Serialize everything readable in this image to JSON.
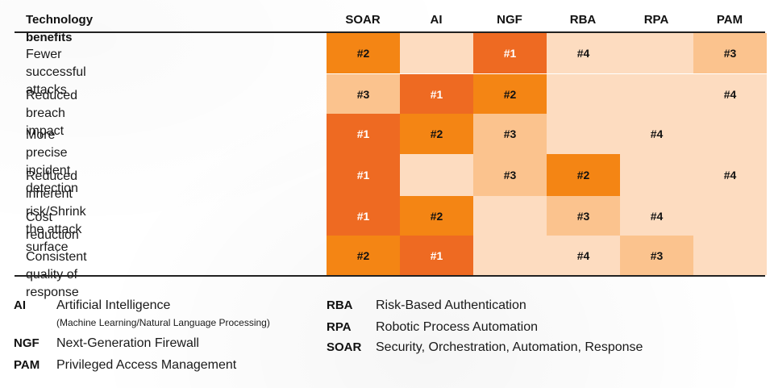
{
  "chart_data": {
    "type": "heatmap",
    "corner_header": "Technology benefits",
    "columns": [
      "SOAR",
      "AI",
      "NGF",
      "RBA",
      "RPA",
      "PAM"
    ],
    "rows": [
      {
        "label": "Fewer successful attacks",
        "ranks": [
          "#2",
          "",
          "#1",
          "#4",
          "",
          "#3"
        ]
      },
      {
        "label": "Reduced breach impact",
        "ranks": [
          "#3",
          "#1",
          "#2",
          "",
          "",
          "#4"
        ]
      },
      {
        "label": "More precise incident detection",
        "ranks": [
          "#1",
          "#2",
          "#3",
          "",
          "#4",
          ""
        ]
      },
      {
        "label": "Reduced inherent risk/Shrink the attack surface",
        "ranks": [
          "#1",
          "",
          "#3",
          "#2",
          "",
          "#4"
        ]
      },
      {
        "label": "Cost reduction",
        "ranks": [
          "#1",
          "#2",
          "",
          "#3",
          "#4",
          ""
        ]
      },
      {
        "label": "Consistent quality of response",
        "ranks": [
          "#2",
          "#1",
          "",
          "#4",
          "#3",
          ""
        ]
      }
    ],
    "rank_colors": {
      "#1": "#EE6A22",
      "#2": "#F48514",
      "#3": "#FBC38E",
      "#4": "#FDDCC0",
      "": "#FDDCC0"
    }
  },
  "legend": {
    "left": [
      {
        "abbr": "AI",
        "text": "Artificial Intelligence",
        "sub": "(Machine Learning/Natural Language Processing)"
      },
      {
        "abbr": "NGF",
        "text": "Next-Generation Firewall"
      },
      {
        "abbr": "PAM",
        "text": "Privileged Access Management"
      }
    ],
    "right": [
      {
        "abbr": "RBA",
        "text": "Risk-Based Authentication"
      },
      {
        "abbr": "RPA",
        "text": "Robotic Process Automation"
      },
      {
        "abbr": "SOAR",
        "text": "Security, Orchestration, Automation, Response"
      }
    ]
  }
}
